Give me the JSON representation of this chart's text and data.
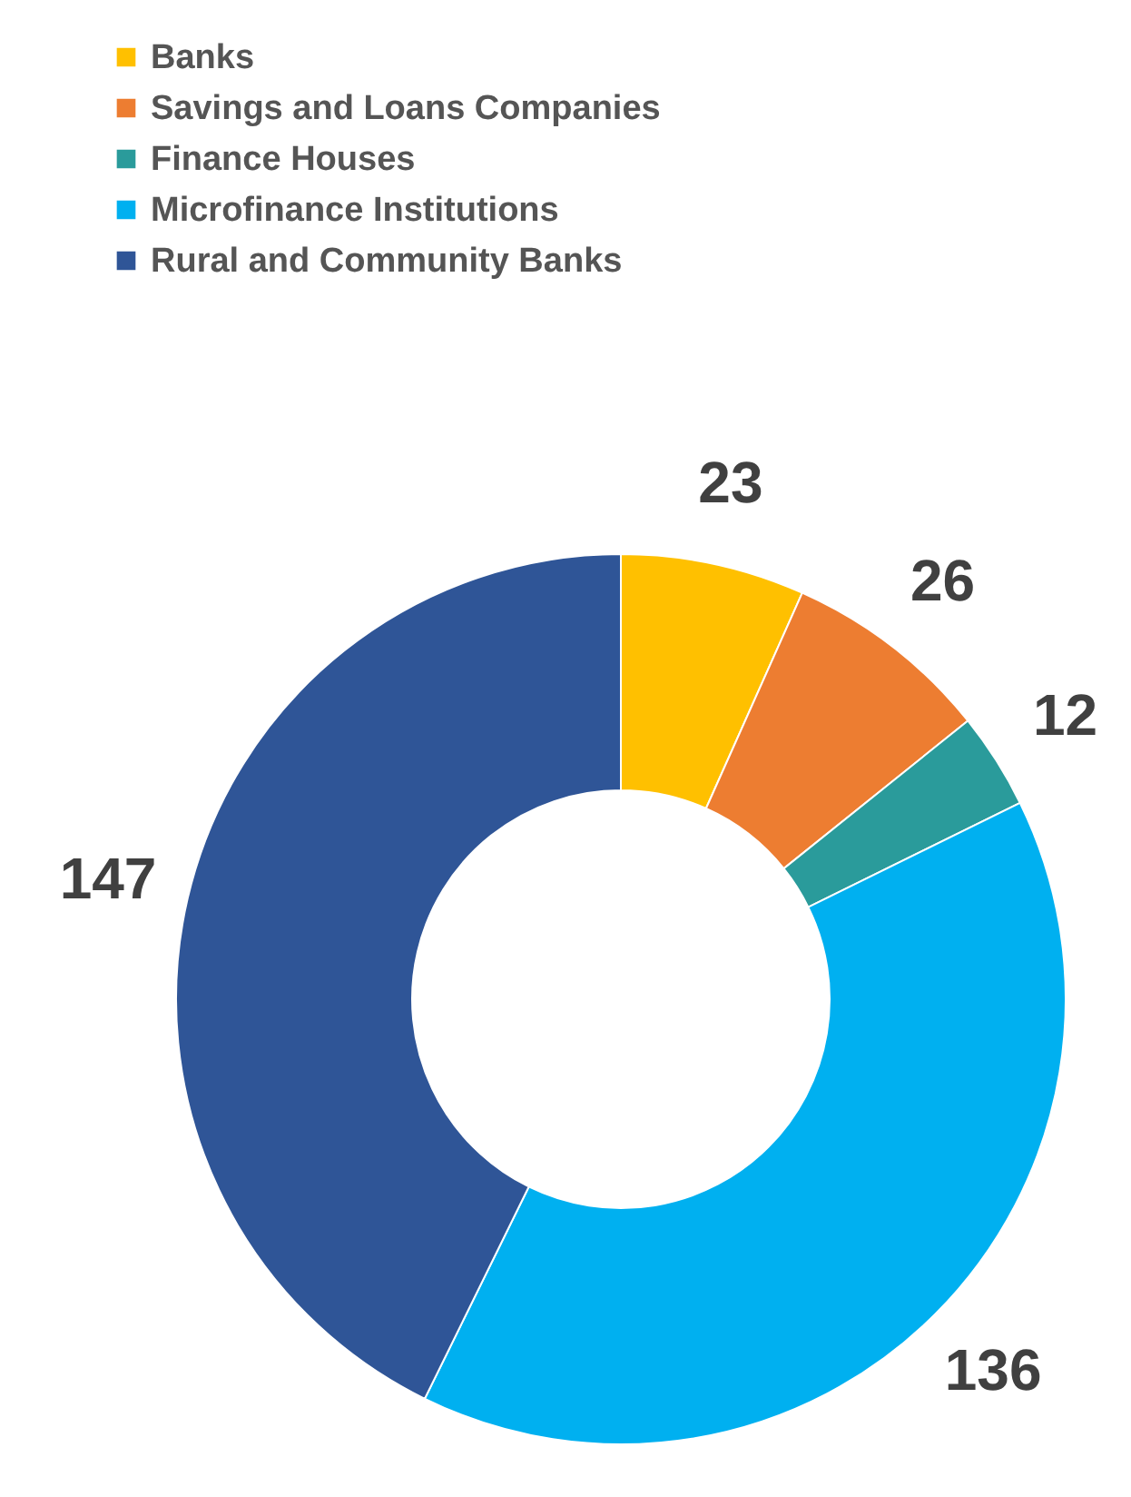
{
  "chart_data": {
    "type": "donut",
    "categories": [
      "Banks",
      "Savings and Loans Companies",
      "Finance Houses",
      "Microfinance Institutions",
      "Rural and Community Banks"
    ],
    "values": [
      23,
      26,
      12,
      136,
      147
    ],
    "colors": [
      "#ffc000",
      "#ed7d31",
      "#2a9b9b",
      "#00b0f0",
      "#2f5597"
    ],
    "data_labels": true,
    "legend": "top left"
  }
}
